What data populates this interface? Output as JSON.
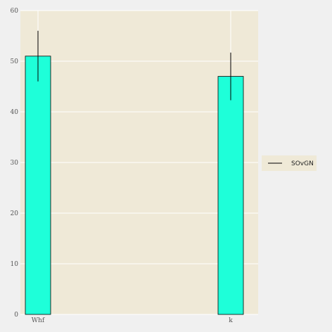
{
  "chart_data": {
    "type": "bar",
    "title": "",
    "xlabel": "",
    "ylabel": "",
    "categories": [
      "Whf",
      "k"
    ],
    "series": [
      {
        "name": "SOvGN",
        "values": [
          51,
          47
        ],
        "error": [
          5,
          4.7
        ],
        "color": "#1effd9"
      }
    ],
    "ylim": [
      0,
      60
    ],
    "yticks": [
      0,
      10,
      20,
      30,
      40,
      50,
      60
    ],
    "grid": true,
    "legend": {
      "position": "right",
      "entries": [
        "SOvGN"
      ]
    },
    "colors": {
      "plot_background": "#efe9d7",
      "figure_background": "#f0f0f0",
      "grid": "#ffffff",
      "bar": "#1effd9",
      "bar_edge": "#000000",
      "error_bar": "#000000"
    }
  }
}
